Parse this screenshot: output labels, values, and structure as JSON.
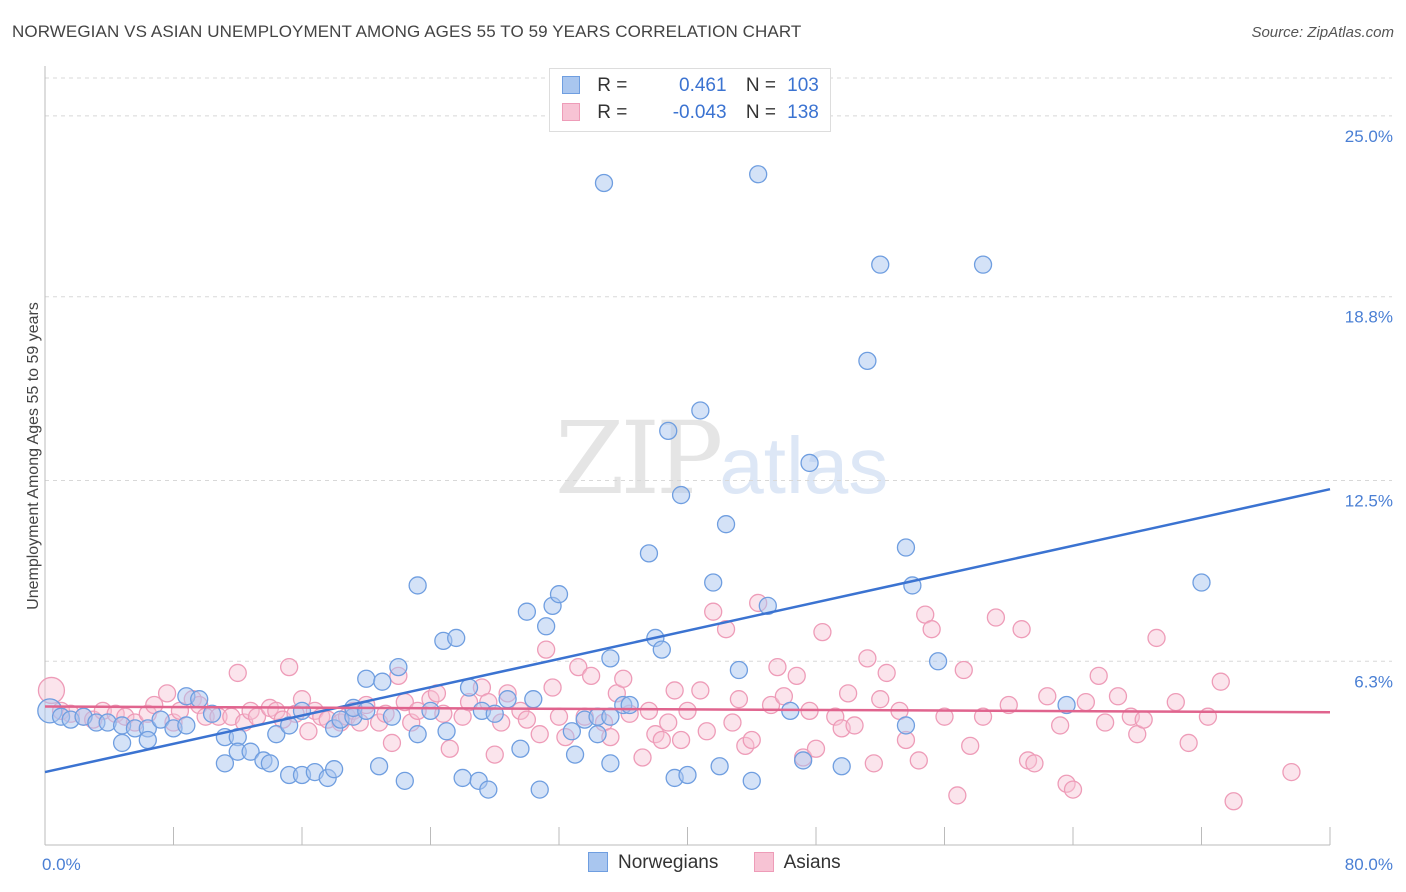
{
  "header": {
    "title": "NORWEGIAN VS ASIAN UNEMPLOYMENT AMONG AGES 55 TO 59 YEARS CORRELATION CHART",
    "source": "Source: ZipAtlas.com"
  },
  "watermark": {
    "zip": "ZIP",
    "atlas": "atlas"
  },
  "legend": {
    "rows": [
      {
        "r_label": "R =",
        "r_value": "0.461",
        "n_label": "N =",
        "n_value": "103"
      },
      {
        "r_label": "R =",
        "r_value": "-0.043",
        "n_label": "N =",
        "n_value": "138"
      }
    ]
  },
  "bottom_legend": {
    "items": [
      {
        "label": "Norwegians"
      },
      {
        "label": "Asians"
      }
    ]
  },
  "colors": {
    "norwegian_fill": "#a9c6ef",
    "norwegian_stroke": "#6f9ee0",
    "norwegian_line": "#3b73d1",
    "asian_fill": "#f7c3d4",
    "asian_stroke": "#ee9cb8",
    "asian_line": "#e0648e",
    "grid": "#d8d8d8",
    "tick_text": "#4a7fd4"
  },
  "chart_data": {
    "type": "scatter",
    "title": "NORWEGIAN VS ASIAN UNEMPLOYMENT AMONG AGES 55 TO 59 YEARS CORRELATION CHART",
    "xlabel": "",
    "ylabel": "Unemployment Among Ages 55 to 59 years",
    "xlim": [
      0,
      80
    ],
    "ylim": [
      0,
      26.3
    ],
    "x_tick_labels": [
      "0.0%",
      "80.0%"
    ],
    "y_ticks": [
      6.3,
      12.5,
      18.8,
      25.0
    ],
    "y_tick_labels": [
      "6.3%",
      "12.5%",
      "18.8%",
      "25.0%"
    ],
    "grid": true,
    "legend_position": "top-center",
    "series": [
      {
        "name": "Norwegians",
        "r": 0.461,
        "n": 103,
        "trend": {
          "x": [
            0,
            80
          ],
          "y": [
            2.5,
            12.2
          ]
        },
        "points": [
          [
            0.3,
            4.6
          ],
          [
            1.0,
            4.4
          ],
          [
            1.6,
            4.3
          ],
          [
            2.4,
            4.4
          ],
          [
            3.2,
            4.2
          ],
          [
            3.9,
            4.2
          ],
          [
            4.8,
            4.1
          ],
          [
            5.6,
            4.0
          ],
          [
            6.4,
            4.0
          ],
          [
            7.2,
            4.3
          ],
          [
            8.0,
            4.0
          ],
          [
            8.8,
            4.1
          ],
          [
            4.8,
            3.5
          ],
          [
            6.4,
            3.6
          ],
          [
            8.8,
            5.1
          ],
          [
            9.6,
            5.0
          ],
          [
            10.4,
            4.5
          ],
          [
            11.2,
            3.7
          ],
          [
            11.2,
            2.8
          ],
          [
            12.0,
            3.7
          ],
          [
            12.0,
            3.2
          ],
          [
            12.8,
            3.2
          ],
          [
            13.6,
            2.9
          ],
          [
            14.0,
            2.8
          ],
          [
            14.4,
            3.8
          ],
          [
            15.2,
            4.1
          ],
          [
            15.2,
            2.4
          ],
          [
            16.0,
            4.6
          ],
          [
            16.0,
            2.4
          ],
          [
            16.8,
            2.5
          ],
          [
            17.6,
            2.3
          ],
          [
            18.0,
            2.6
          ],
          [
            18.0,
            4.0
          ],
          [
            18.4,
            4.3
          ],
          [
            19.2,
            4.4
          ],
          [
            19.2,
            4.7
          ],
          [
            20.0,
            4.6
          ],
          [
            20.0,
            5.7
          ],
          [
            20.8,
            2.7
          ],
          [
            21.0,
            5.6
          ],
          [
            21.6,
            4.4
          ],
          [
            22.0,
            6.1
          ],
          [
            22.4,
            2.2
          ],
          [
            23.2,
            3.8
          ],
          [
            23.2,
            8.9
          ],
          [
            24.0,
            4.6
          ],
          [
            24.8,
            7.0
          ],
          [
            25.0,
            3.9
          ],
          [
            25.6,
            7.1
          ],
          [
            26.0,
            2.3
          ],
          [
            26.4,
            5.4
          ],
          [
            27.0,
            2.2
          ],
          [
            27.2,
            4.6
          ],
          [
            27.6,
            1.9
          ],
          [
            28.0,
            4.5
          ],
          [
            28.8,
            5.0
          ],
          [
            29.6,
            3.3
          ],
          [
            30.0,
            8.0
          ],
          [
            30.4,
            5.0
          ],
          [
            30.8,
            1.9
          ],
          [
            31.2,
            7.5
          ],
          [
            31.6,
            8.2
          ],
          [
            32.0,
            8.6
          ],
          [
            32.8,
            3.9
          ],
          [
            33.0,
            3.1
          ],
          [
            33.6,
            4.3
          ],
          [
            34.4,
            3.8
          ],
          [
            34.4,
            4.4
          ],
          [
            34.8,
            22.7
          ],
          [
            35.2,
            6.4
          ],
          [
            35.2,
            4.4
          ],
          [
            35.2,
            2.8
          ],
          [
            36.0,
            4.8
          ],
          [
            36.4,
            4.8
          ],
          [
            37.6,
            10.0
          ],
          [
            38.0,
            7.1
          ],
          [
            38.4,
            6.7
          ],
          [
            38.8,
            14.2
          ],
          [
            39.2,
            2.3
          ],
          [
            39.6,
            12.0
          ],
          [
            40.0,
            2.4
          ],
          [
            40.8,
            14.9
          ],
          [
            41.6,
            9.0
          ],
          [
            42.0,
            2.7
          ],
          [
            42.4,
            11.0
          ],
          [
            43.2,
            6.0
          ],
          [
            44.0,
            2.2
          ],
          [
            44.4,
            23.0
          ],
          [
            45.0,
            8.2
          ],
          [
            46.4,
            4.6
          ],
          [
            47.2,
            2.9
          ],
          [
            47.6,
            13.1
          ],
          [
            49.6,
            2.7
          ],
          [
            51.2,
            16.6
          ],
          [
            52.0,
            19.9
          ],
          [
            53.6,
            4.1
          ],
          [
            53.6,
            10.2
          ],
          [
            54.0,
            8.9
          ],
          [
            55.6,
            6.3
          ],
          [
            58.4,
            19.9
          ],
          [
            63.6,
            4.8
          ],
          [
            72.0,
            9.0
          ]
        ]
      },
      {
        "name": "Asians",
        "r": -0.043,
        "n": 138,
        "trend": {
          "x": [
            0,
            80
          ],
          "y": [
            4.75,
            4.55
          ]
        },
        "points": [
          [
            0.4,
            5.3
          ],
          [
            1.0,
            4.6
          ],
          [
            1.6,
            4.5
          ],
          [
            2.4,
            4.4
          ],
          [
            3.0,
            4.3
          ],
          [
            3.6,
            4.6
          ],
          [
            4.4,
            4.5
          ],
          [
            5.0,
            4.4
          ],
          [
            5.6,
            4.2
          ],
          [
            6.4,
            4.5
          ],
          [
            6.8,
            4.8
          ],
          [
            7.6,
            5.2
          ],
          [
            8.0,
            4.2
          ],
          [
            8.4,
            4.6
          ],
          [
            9.2,
            5.0
          ],
          [
            9.6,
            4.8
          ],
          [
            10.0,
            4.4
          ],
          [
            10.8,
            4.4
          ],
          [
            11.6,
            4.4
          ],
          [
            12.0,
            5.9
          ],
          [
            12.4,
            4.2
          ],
          [
            12.8,
            4.6
          ],
          [
            13.2,
            4.4
          ],
          [
            14.0,
            4.7
          ],
          [
            14.4,
            4.6
          ],
          [
            14.8,
            4.3
          ],
          [
            15.2,
            6.1
          ],
          [
            15.6,
            4.5
          ],
          [
            16.0,
            5.0
          ],
          [
            16.4,
            3.9
          ],
          [
            16.8,
            4.6
          ],
          [
            17.2,
            4.4
          ],
          [
            17.6,
            4.3
          ],
          [
            18.4,
            4.2
          ],
          [
            18.8,
            4.4
          ],
          [
            19.2,
            4.6
          ],
          [
            19.6,
            4.2
          ],
          [
            20.0,
            4.8
          ],
          [
            20.8,
            4.2
          ],
          [
            21.2,
            4.5
          ],
          [
            21.6,
            3.5
          ],
          [
            22.0,
            5.8
          ],
          [
            22.4,
            4.9
          ],
          [
            22.8,
            4.2
          ],
          [
            23.2,
            4.6
          ],
          [
            24.0,
            5.0
          ],
          [
            24.4,
            5.2
          ],
          [
            24.8,
            4.5
          ],
          [
            25.2,
            3.3
          ],
          [
            26.0,
            4.4
          ],
          [
            26.4,
            4.9
          ],
          [
            27.2,
            5.4
          ],
          [
            27.6,
            4.9
          ],
          [
            28.0,
            3.1
          ],
          [
            28.4,
            4.2
          ],
          [
            28.8,
            5.2
          ],
          [
            29.6,
            4.6
          ],
          [
            30.0,
            4.3
          ],
          [
            30.8,
            3.8
          ],
          [
            31.2,
            6.7
          ],
          [
            31.6,
            5.4
          ],
          [
            32.0,
            4.4
          ],
          [
            32.4,
            3.7
          ],
          [
            33.2,
            6.1
          ],
          [
            33.6,
            4.4
          ],
          [
            34.0,
            5.8
          ],
          [
            34.8,
            4.2
          ],
          [
            35.2,
            3.7
          ],
          [
            35.6,
            5.2
          ],
          [
            36.0,
            5.7
          ],
          [
            36.4,
            4.5
          ],
          [
            37.2,
            3.0
          ],
          [
            37.6,
            4.6
          ],
          [
            38.0,
            3.8
          ],
          [
            38.4,
            3.6
          ],
          [
            38.8,
            4.2
          ],
          [
            39.2,
            5.3
          ],
          [
            39.6,
            3.6
          ],
          [
            40.0,
            4.6
          ],
          [
            40.8,
            5.3
          ],
          [
            41.2,
            3.9
          ],
          [
            41.6,
            8.0
          ],
          [
            42.4,
            7.4
          ],
          [
            42.8,
            4.2
          ],
          [
            43.2,
            5.0
          ],
          [
            43.6,
            3.4
          ],
          [
            44.0,
            3.6
          ],
          [
            44.4,
            8.3
          ],
          [
            45.2,
            4.8
          ],
          [
            45.6,
            6.1
          ],
          [
            46.0,
            5.1
          ],
          [
            46.8,
            5.8
          ],
          [
            47.2,
            3.0
          ],
          [
            47.6,
            4.6
          ],
          [
            48.0,
            3.3
          ],
          [
            48.4,
            7.3
          ],
          [
            49.2,
            4.4
          ],
          [
            49.6,
            4.0
          ],
          [
            50.0,
            5.2
          ],
          [
            50.4,
            4.1
          ],
          [
            51.2,
            6.4
          ],
          [
            51.6,
            2.8
          ],
          [
            52.0,
            5.0
          ],
          [
            52.4,
            5.9
          ],
          [
            53.2,
            4.6
          ],
          [
            53.6,
            3.6
          ],
          [
            54.4,
            2.9
          ],
          [
            54.8,
            7.9
          ],
          [
            55.2,
            7.4
          ],
          [
            56.0,
            4.4
          ],
          [
            56.8,
            1.7
          ],
          [
            57.2,
            6.0
          ],
          [
            57.6,
            3.4
          ],
          [
            58.4,
            4.4
          ],
          [
            59.2,
            7.8
          ],
          [
            60.0,
            4.8
          ],
          [
            60.8,
            7.4
          ],
          [
            61.2,
            2.9
          ],
          [
            61.6,
            2.8
          ],
          [
            62.4,
            5.1
          ],
          [
            63.2,
            4.1
          ],
          [
            63.6,
            2.1
          ],
          [
            64.0,
            1.9
          ],
          [
            64.8,
            4.9
          ],
          [
            65.6,
            5.8
          ],
          [
            66.0,
            4.2
          ],
          [
            66.8,
            5.1
          ],
          [
            67.6,
            4.4
          ],
          [
            68.0,
            3.8
          ],
          [
            68.4,
            4.3
          ],
          [
            69.2,
            7.1
          ],
          [
            70.4,
            4.9
          ],
          [
            71.2,
            3.5
          ],
          [
            72.4,
            4.4
          ],
          [
            73.2,
            5.6
          ],
          [
            74.0,
            1.5
          ],
          [
            77.6,
            2.5
          ]
        ]
      }
    ]
  }
}
